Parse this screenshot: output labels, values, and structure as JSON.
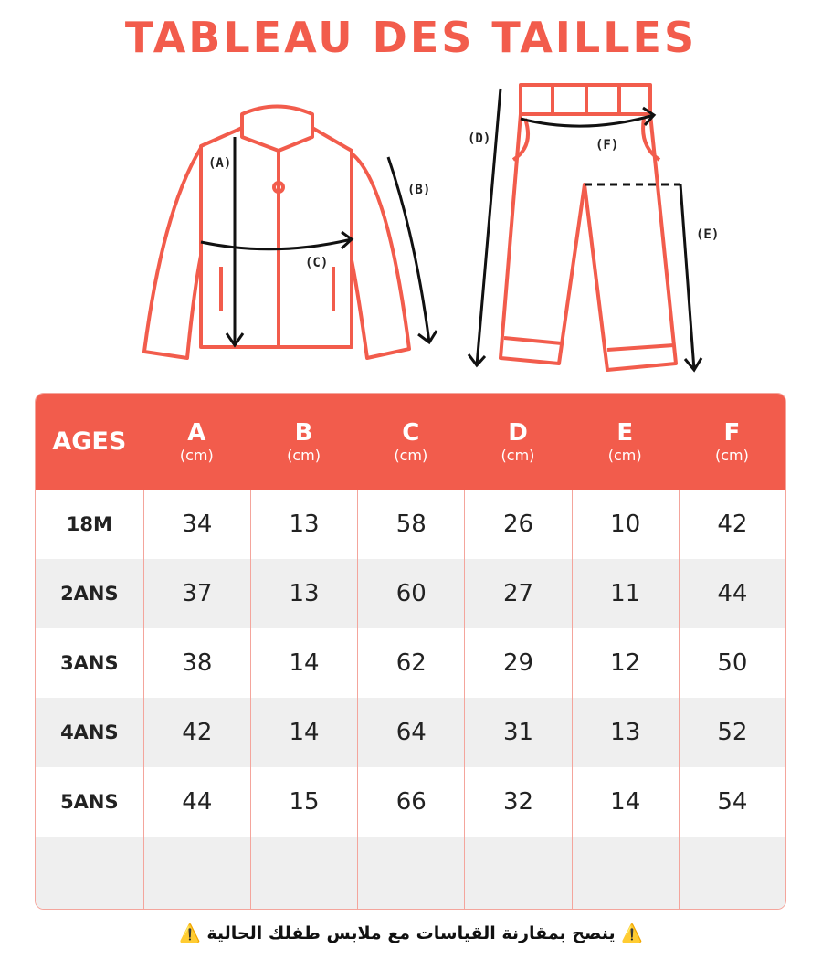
{
  "title": "TABLEAU DES TAILLES",
  "diagram": {
    "labels": [
      "(A)",
      "(B)",
      "(C)",
      "(D)",
      "(E)",
      "(F)"
    ]
  },
  "table": {
    "corner": "AGES",
    "columns": [
      {
        "letter": "A",
        "unit": "(cm)"
      },
      {
        "letter": "B",
        "unit": "(cm)"
      },
      {
        "letter": "C",
        "unit": "(cm)"
      },
      {
        "letter": "D",
        "unit": "(cm)"
      },
      {
        "letter": "E",
        "unit": "(cm)"
      },
      {
        "letter": "F",
        "unit": "(cm)"
      }
    ],
    "rows": [
      {
        "age": "18M",
        "cells": [
          34,
          13,
          58,
          26,
          10,
          42
        ]
      },
      {
        "age": "2ANS",
        "cells": [
          37,
          13,
          60,
          27,
          11,
          44
        ]
      },
      {
        "age": "3ANS",
        "cells": [
          38,
          14,
          62,
          29,
          12,
          50
        ]
      },
      {
        "age": "4ANS",
        "cells": [
          42,
          14,
          64,
          31,
          13,
          52
        ]
      },
      {
        "age": "5ANS",
        "cells": [
          44,
          15,
          66,
          32,
          14,
          54
        ]
      }
    ]
  },
  "footer": "⚠️ ينصح بمقارنة القياسات مع ملابس طفلك الحالية ⚠️"
}
